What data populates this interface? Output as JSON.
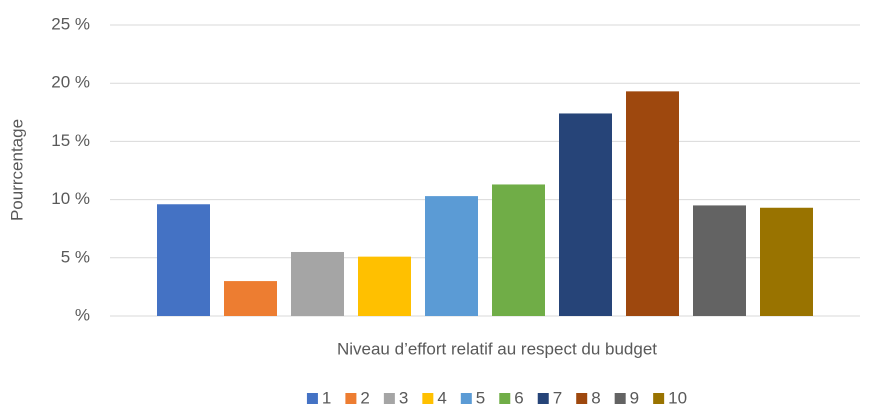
{
  "chart_data": {
    "type": "bar",
    "x_label": "Niveau d’effort relatif au respect du budget",
    "y_label": "Pourrcentage",
    "categories": [
      null
    ],
    "series": [
      {
        "name": "1",
        "color": "#4472c4",
        "values": [
          9.6
        ]
      },
      {
        "name": "2",
        "color": "#ed7d31",
        "values": [
          3.0
        ]
      },
      {
        "name": "3",
        "color": "#a5a5a5",
        "values": [
          5.5
        ]
      },
      {
        "name": "4",
        "color": "#ffc000",
        "values": [
          5.1
        ]
      },
      {
        "name": "5",
        "color": "#5b9bd5",
        "values": [
          10.3
        ]
      },
      {
        "name": "6",
        "color": "#70ad47",
        "values": [
          11.3
        ]
      },
      {
        "name": "7",
        "color": "#264478",
        "values": [
          17.4
        ]
      },
      {
        "name": "8",
        "color": "#9e480e",
        "values": [
          19.3
        ]
      },
      {
        "name": "9",
        "color": "#636363",
        "values": [
          9.5
        ]
      },
      {
        "name": "10",
        "color": "#997300",
        "values": [
          9.3
        ]
      }
    ],
    "ylim": [
      0,
      25
    ],
    "yticks": [
      {
        "value": 0,
        "label": "%"
      },
      {
        "value": 5,
        "label": "5 %"
      },
      {
        "value": 10,
        "label": "10 %"
      },
      {
        "value": 15,
        "label": "15 %"
      },
      {
        "value": 20,
        "label": "20 %"
      },
      {
        "value": 25,
        "label": "25 %"
      }
    ],
    "grid": true,
    "legend": "bottom"
  }
}
